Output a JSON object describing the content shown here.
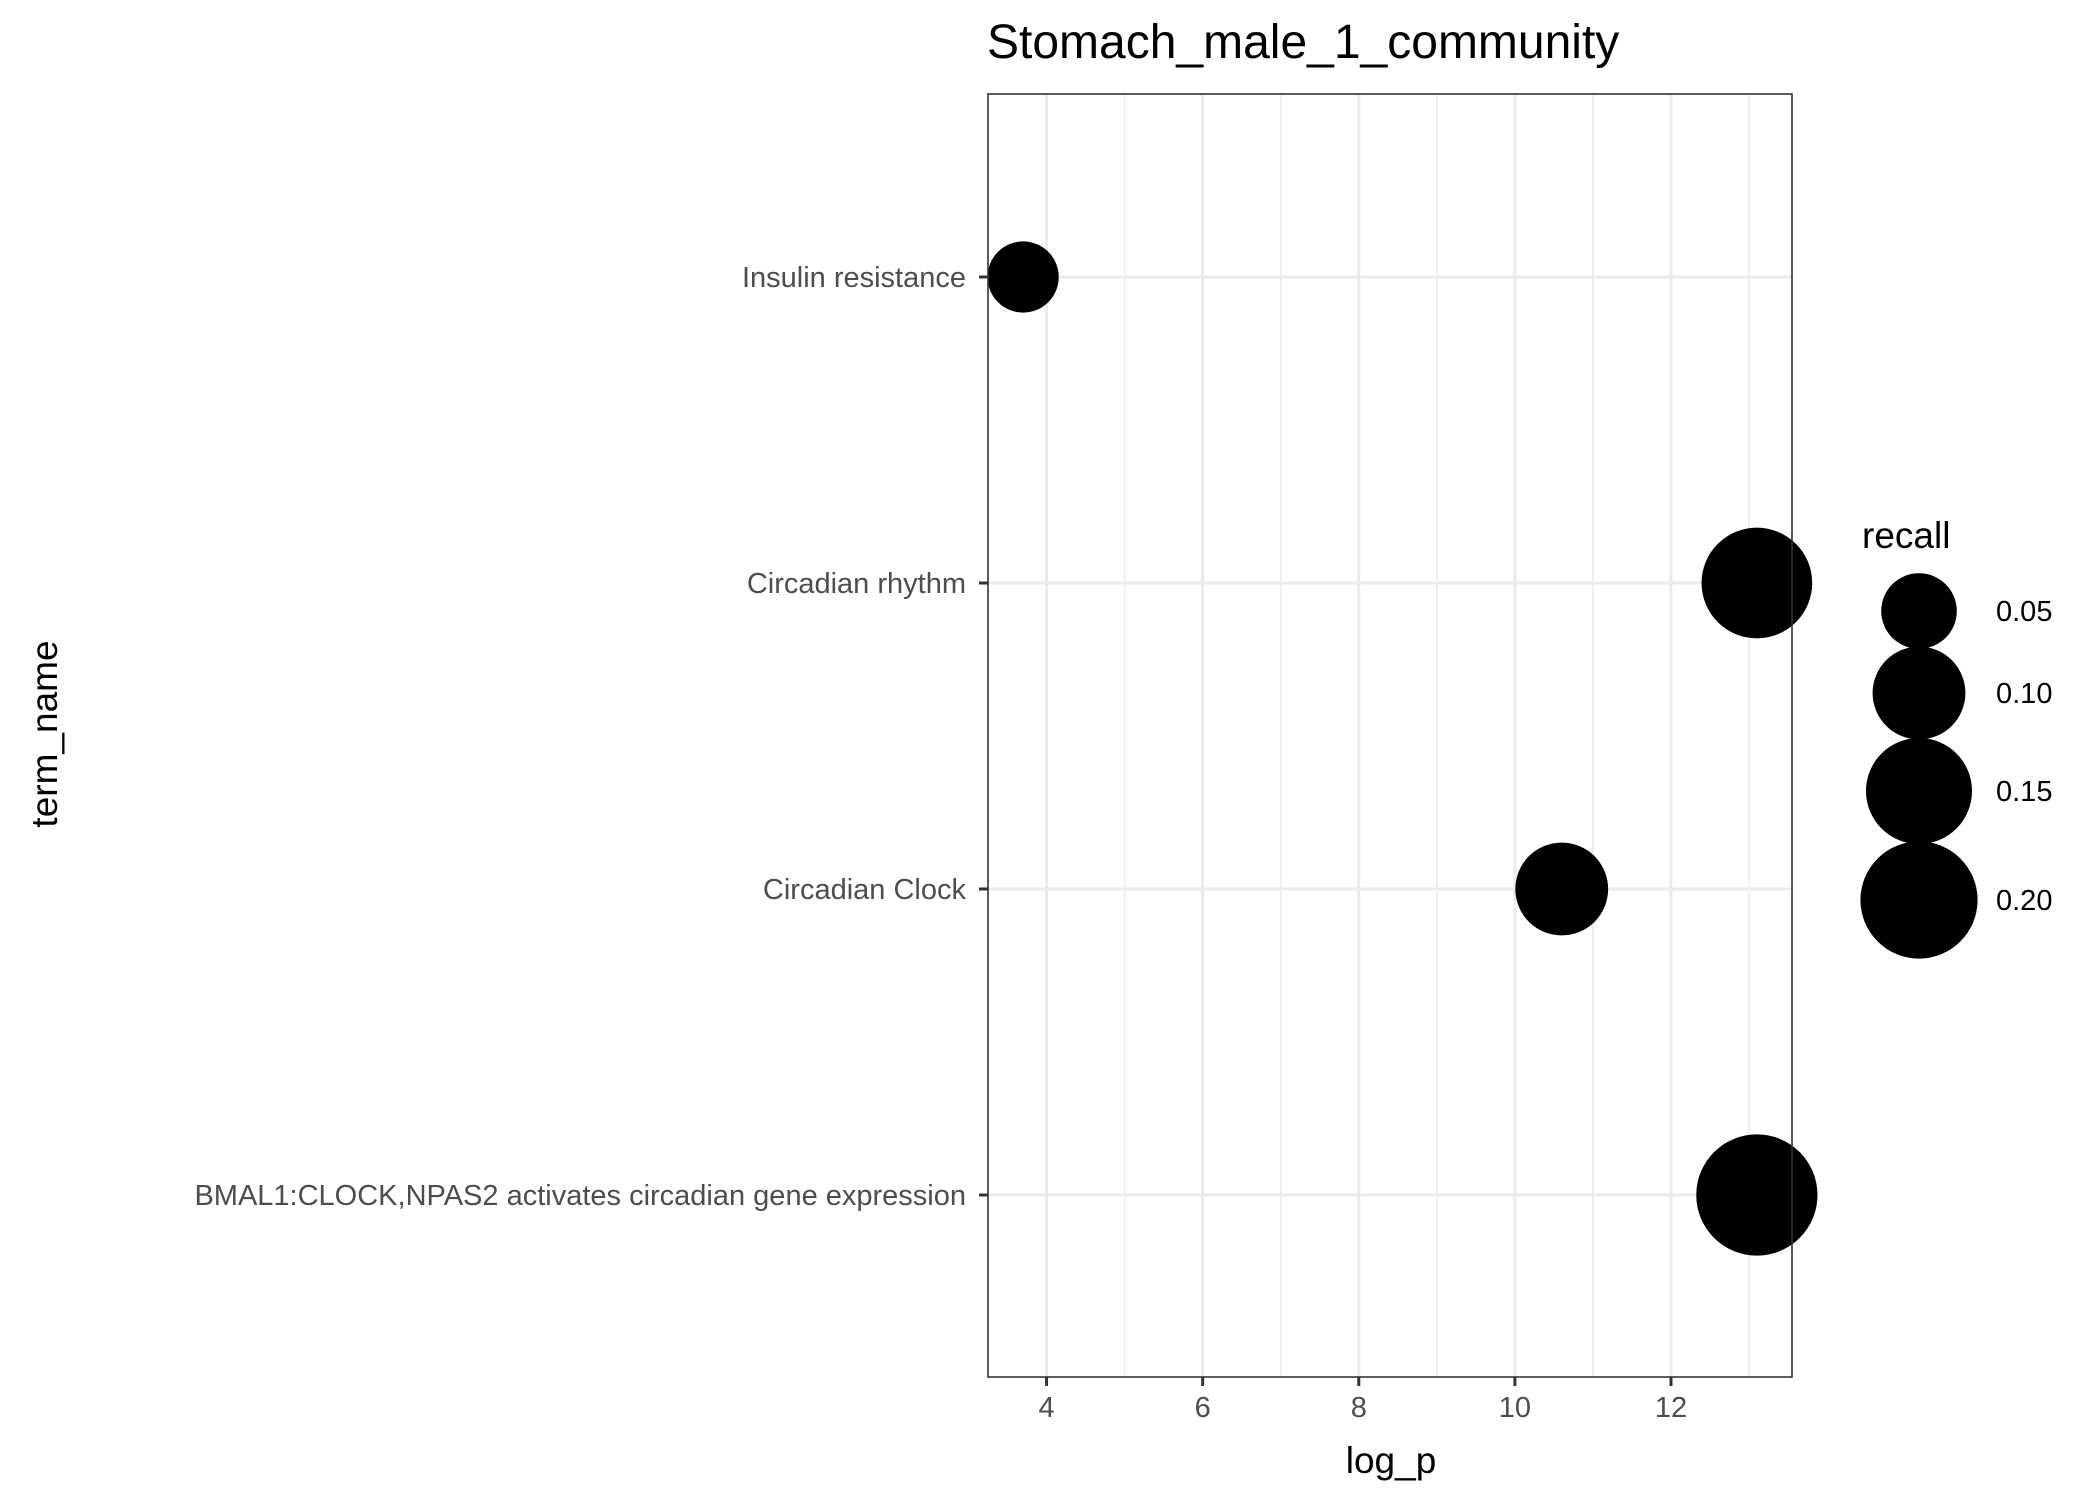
{
  "chart_data": {
    "type": "scatter",
    "title": "Stomach_male_1_community",
    "xlabel": "log_p",
    "ylabel": "term_name",
    "xlim": [
      3.25,
      13.55
    ],
    "x_ticks": [
      4,
      6,
      8,
      10,
      12
    ],
    "x_tick_labels": [
      "4",
      "6",
      "8",
      "10",
      "12"
    ],
    "categories": [
      "Insulin resistance",
      "Circadian rhythm",
      "Circadian Clock",
      "BMAL1:CLOCK,NPAS2 activates circadian gene expression"
    ],
    "points": [
      {
        "term": "Insulin resistance",
        "log_p": 3.7,
        "recall": 0.04
      },
      {
        "term": "Circadian rhythm",
        "log_p": 13.1,
        "recall": 0.17
      },
      {
        "term": "Circadian Clock",
        "log_p": 10.6,
        "recall": 0.1
      },
      {
        "term": "BMAL1:CLOCK,NPAS2 activates circadian gene expression",
        "log_p": 13.1,
        "recall": 0.22
      }
    ],
    "size_legend": {
      "title": "recall",
      "values": [
        0.05,
        0.1,
        0.15,
        0.2
      ],
      "labels": [
        "0.05",
        "0.10",
        "0.15",
        "0.20"
      ]
    },
    "grid": true,
    "legend_position": "right",
    "point_color": "#000000",
    "gridline_color": "#ebebeb",
    "panel_border_color": "#333333"
  }
}
